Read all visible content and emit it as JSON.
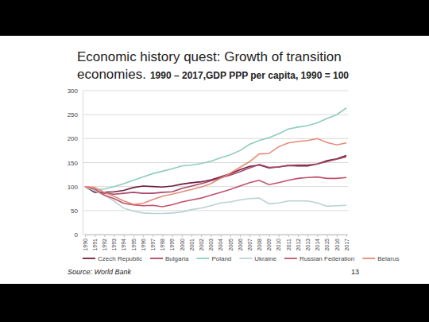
{
  "chart_data": {
    "type": "line",
    "title": "Economic history quest: Growth of transition economies.",
    "subtitle": "1990 – 2017,GDP PPP per capita, 1990 = 100",
    "source": "Source: World Bank",
    "page": "13",
    "x": [
      1990,
      1991,
      1992,
      1993,
      1994,
      1995,
      1996,
      1997,
      1998,
      1999,
      2000,
      2001,
      2002,
      2003,
      2004,
      2005,
      2006,
      2007,
      2008,
      2009,
      2010,
      2011,
      2012,
      2013,
      2014,
      2015,
      2016,
      2017
    ],
    "xlim": [
      1990,
      2017
    ],
    "xticks": [
      1990,
      1991,
      1992,
      1993,
      1994,
      1995,
      1996,
      1997,
      1998,
      1999,
      2000,
      2001,
      2002,
      2003,
      2004,
      2005,
      2006,
      2007,
      2008,
      2009,
      2010,
      2011,
      2012,
      2013,
      2014,
      2015,
      2016,
      2017
    ],
    "ylim": [
      0,
      300
    ],
    "yticks": [
      0,
      50,
      100,
      150,
      200,
      250,
      300
    ],
    "grid": true,
    "legend": "bottom",
    "series": [
      {
        "name": "Czech Republic",
        "color": "#6e1d3c",
        "values": [
          100,
          88,
          88,
          89,
          92,
          98,
          101,
          100,
          99,
          101,
          105,
          108,
          110,
          114,
          120,
          127,
          135,
          142,
          145,
          139,
          141,
          144,
          143,
          143,
          147,
          154,
          158,
          165
        ]
      },
      {
        "name": "Bulgaria",
        "color": "#a8466a",
        "values": [
          100,
          92,
          86,
          84,
          86,
          88,
          86,
          86,
          88,
          89,
          96,
          101,
          106,
          112,
          118,
          124,
          131,
          139,
          146,
          140,
          141,
          144,
          145,
          145,
          147,
          152,
          157,
          162
        ]
      },
      {
        "name": "Poland",
        "color": "#8fcbc1",
        "values": [
          100,
          93,
          95,
          100,
          106,
          113,
          120,
          127,
          132,
          137,
          143,
          145,
          148,
          153,
          160,
          166,
          175,
          188,
          196,
          202,
          210,
          220,
          224,
          227,
          233,
          242,
          250,
          264
        ]
      },
      {
        "name": "Ukraine",
        "color": "#b9d2d3",
        "values": [
          100,
          91,
          82,
          70,
          55,
          49,
          45,
          44,
          44,
          45,
          47,
          52,
          55,
          60,
          66,
          68,
          72,
          75,
          76,
          64,
          66,
          70,
          70,
          70,
          66,
          59,
          60,
          61
        ]
      },
      {
        "name": "Russian Federation",
        "color": "#c2506e",
        "values": [
          100,
          95,
          82,
          75,
          65,
          62,
          60,
          61,
          58,
          62,
          68,
          72,
          76,
          82,
          88,
          94,
          101,
          108,
          113,
          104,
          108,
          113,
          117,
          119,
          120,
          117,
          117,
          119
        ]
      },
      {
        "name": "Belarus",
        "color": "#e58b76",
        "values": [
          100,
          98,
          88,
          80,
          70,
          63,
          65,
          73,
          80,
          84,
          89,
          94,
          99,
          106,
          117,
          128,
          140,
          152,
          168,
          169,
          183,
          191,
          194,
          196,
          200,
          192,
          187,
          191
        ]
      }
    ]
  }
}
